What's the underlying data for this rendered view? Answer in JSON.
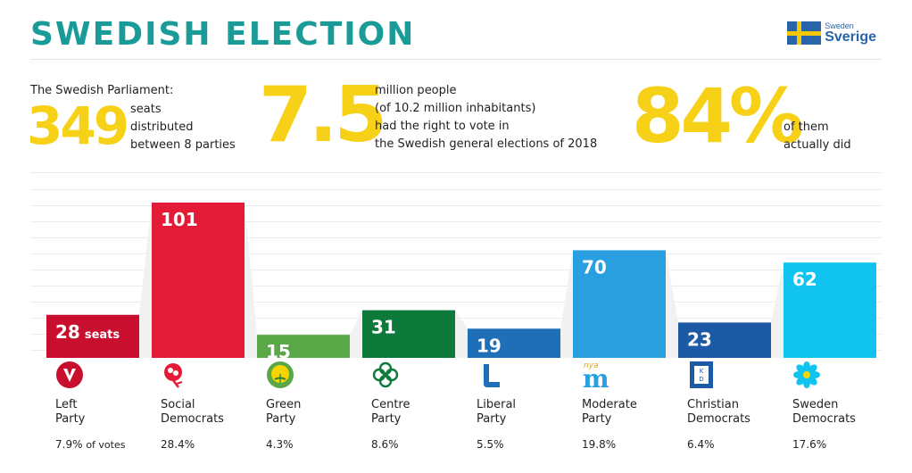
{
  "header": {
    "title": "SWEDISH ELECTION",
    "logo_small": "Sweden",
    "logo_big": "Sverige"
  },
  "stats": {
    "parliament_label": "The Swedish Parliament:",
    "seats_number": "349",
    "seats_text_1": "seats",
    "seats_text_2": "distributed",
    "seats_text_3": "between 8 parties",
    "voters_number": "7.5",
    "voters_text_1": "million people",
    "voters_text_2": "(of 10.2 million inhabitants)",
    "voters_text_3": "had the right to vote in",
    "voters_text_4": "the Swedish general elections of 2018",
    "turnout_number": "84%",
    "turnout_text_1": "of them",
    "turnout_text_2": "actually did"
  },
  "chart_data": {
    "type": "bar",
    "title": "",
    "xlabel": "",
    "ylabel": "",
    "ylim": [
      0,
      101
    ],
    "categories": [
      "Left Party",
      "Social Democrats",
      "Green Party",
      "Centre Party",
      "Liberal Party",
      "Moderate Party",
      "Christian Democrats",
      "Sweden Democrats"
    ],
    "values": [
      28,
      101,
      15,
      31,
      19,
      70,
      23,
      62
    ],
    "value_labels": [
      "28",
      "101",
      "15",
      "31",
      "19",
      "70",
      "23",
      "62"
    ],
    "unit_label": "seats",
    "vote_shares": [
      "7.9%",
      "28.4%",
      "4.3%",
      "8.6%",
      "5.5%",
      "19.8%",
      "6.4%",
      "17.6%"
    ],
    "vote_share_suffix": "of votes",
    "colors": [
      "#c8102e",
      "#e31b36",
      "#5aa747",
      "#0d7a3b",
      "#1e6fb8",
      "#2a9fe0",
      "#1d5aa6",
      "#11c4ef"
    ],
    "grid": true,
    "legend": "none"
  },
  "parties": [
    {
      "name": "Left\nParty",
      "pct": "7.9%",
      "icon": "left-party-v-icon"
    },
    {
      "name": "Social\nDemocrats",
      "pct": "28.4%",
      "icon": "rose-icon"
    },
    {
      "name": "Green\nParty",
      "pct": "4.3%",
      "icon": "dandelion-icon"
    },
    {
      "name": "Centre\nParty",
      "pct": "8.6%",
      "icon": "clover-icon"
    },
    {
      "name": "Liberal\nParty",
      "pct": "5.5%",
      "icon": "liberal-l-icon"
    },
    {
      "name": "Moderate\nParty",
      "pct": "19.8%",
      "icon": "moderate-m-icon",
      "icon_text": "nya",
      "icon_letter": "m"
    },
    {
      "name": "Christian\nDemocrats",
      "pct": "6.4%",
      "icon": "kd-icon",
      "icon_letter": "KD"
    },
    {
      "name": "Sweden\nDemocrats",
      "pct": "17.6%",
      "icon": "hepatica-flower-icon"
    }
  ]
}
